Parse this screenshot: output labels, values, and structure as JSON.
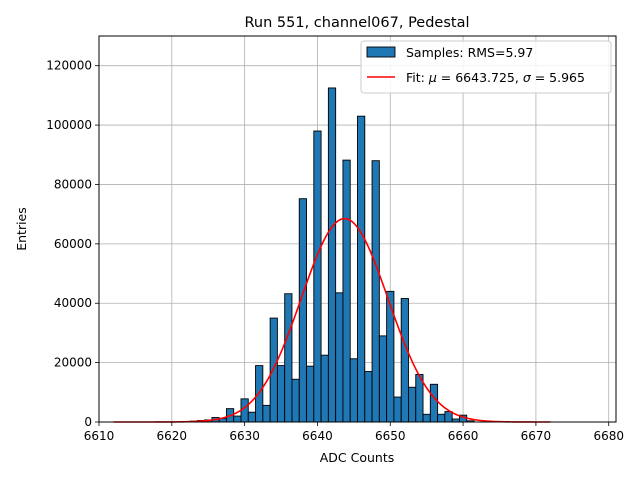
{
  "chart_data": {
    "type": "bar",
    "title": "Run 551, channel067, Pedestal",
    "xlabel": "ADC Counts",
    "ylabel": "Entries",
    "xlim": [
      6610,
      6681
    ],
    "ylim": [
      0,
      130000
    ],
    "xticks": [
      6610,
      6620,
      6630,
      6640,
      6650,
      6660,
      6670,
      6680
    ],
    "yticks": [
      0,
      20000,
      40000,
      60000,
      80000,
      100000,
      120000
    ],
    "grid": true,
    "legend_position": "top-right",
    "bar_color": "#1f77b4",
    "fit_color": "#ff0000",
    "bin_width": 1,
    "bins": [
      {
        "x": 6623,
        "y": 300
      },
      {
        "x": 6624,
        "y": 500
      },
      {
        "x": 6625,
        "y": 700
      },
      {
        "x": 6626,
        "y": 1500
      },
      {
        "x": 6627,
        "y": 1200
      },
      {
        "x": 6628,
        "y": 4500
      },
      {
        "x": 6629,
        "y": 2000
      },
      {
        "x": 6630,
        "y": 7800
      },
      {
        "x": 6631,
        "y": 3300
      },
      {
        "x": 6632,
        "y": 19000
      },
      {
        "x": 6633,
        "y": 5600
      },
      {
        "x": 6634,
        "y": 35000
      },
      {
        "x": 6635,
        "y": 19000
      },
      {
        "x": 6636,
        "y": 43200
      },
      {
        "x": 6637,
        "y": 14400
      },
      {
        "x": 6638,
        "y": 75200
      },
      {
        "x": 6639,
        "y": 18800
      },
      {
        "x": 6640,
        "y": 98000
      },
      {
        "x": 6641,
        "y": 22500
      },
      {
        "x": 6642,
        "y": 112500
      },
      {
        "x": 6643,
        "y": 43500
      },
      {
        "x": 6644,
        "y": 88200
      },
      {
        "x": 6645,
        "y": 21300
      },
      {
        "x": 6646,
        "y": 103000
      },
      {
        "x": 6647,
        "y": 17000
      },
      {
        "x": 6648,
        "y": 88000
      },
      {
        "x": 6649,
        "y": 29000
      },
      {
        "x": 6650,
        "y": 44000
      },
      {
        "x": 6651,
        "y": 8400
      },
      {
        "x": 6652,
        "y": 41600
      },
      {
        "x": 6653,
        "y": 11700
      },
      {
        "x": 6654,
        "y": 16000
      },
      {
        "x": 6655,
        "y": 2600
      },
      {
        "x": 6656,
        "y": 12700
      },
      {
        "x": 6657,
        "y": 2600
      },
      {
        "x": 6658,
        "y": 3500
      },
      {
        "x": 6659,
        "y": 1000
      },
      {
        "x": 6660,
        "y": 2300
      },
      {
        "x": 6661,
        "y": 400
      }
    ],
    "fit": {
      "mu": 6643.725,
      "sigma": 5.965,
      "peak": 68500,
      "range": [
        6612,
        6672
      ]
    },
    "legend": {
      "samples_label": "Samples: RMS=5.97",
      "fit_prefix": "Fit: ",
      "mu_symbol": "μ",
      "mu_text": " = 6643.725, ",
      "sigma_symbol": "σ",
      "sigma_text": " = 5.965"
    }
  }
}
